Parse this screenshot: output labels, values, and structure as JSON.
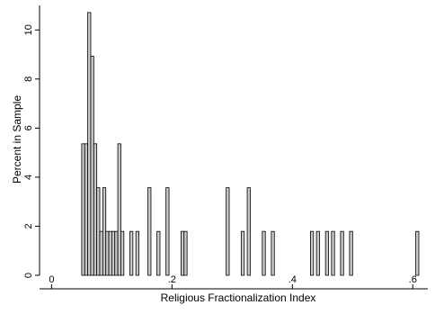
{
  "chart_data": {
    "type": "bar",
    "xlabel": "Religious Fractionalization Index",
    "ylabel": "Percent in Sample",
    "xlim": [
      -0.02,
      0.625
    ],
    "ylim": [
      0,
      11
    ],
    "x_ticks": [
      0,
      0.2,
      0.4,
      0.6
    ],
    "x_tick_labels": [
      "0",
      ".2",
      ".4",
      ".6"
    ],
    "y_ticks": [
      0,
      2,
      4,
      6,
      8,
      10
    ],
    "y_tick_labels": [
      "0",
      "2",
      "4",
      "6",
      "8",
      "10"
    ],
    "bin_width": 0.00508,
    "bar_fill": "#c8c8c8",
    "bar_stroke": "#000000",
    "bins": [
      {
        "x": 0.05,
        "value": 5.36
      },
      {
        "x": 0.055,
        "value": 5.36
      },
      {
        "x": 0.06,
        "value": 10.71
      },
      {
        "x": 0.065,
        "value": 8.93
      },
      {
        "x": 0.07,
        "value": 5.36
      },
      {
        "x": 0.075,
        "value": 3.57
      },
      {
        "x": 0.08,
        "value": 1.79
      },
      {
        "x": 0.085,
        "value": 3.57
      },
      {
        "x": 0.09,
        "value": 1.79
      },
      {
        "x": 0.095,
        "value": 1.79
      },
      {
        "x": 0.1,
        "value": 1.79
      },
      {
        "x": 0.105,
        "value": 1.79
      },
      {
        "x": 0.11,
        "value": 5.36
      },
      {
        "x": 0.115,
        "value": 1.79
      },
      {
        "x": 0.13,
        "value": 1.79
      },
      {
        "x": 0.14,
        "value": 1.79
      },
      {
        "x": 0.16,
        "value": 3.57
      },
      {
        "x": 0.175,
        "value": 1.79
      },
      {
        "x": 0.19,
        "value": 3.57
      },
      {
        "x": 0.215,
        "value": 1.79
      },
      {
        "x": 0.22,
        "value": 1.79
      },
      {
        "x": 0.29,
        "value": 3.57
      },
      {
        "x": 0.315,
        "value": 1.79
      },
      {
        "x": 0.325,
        "value": 3.57
      },
      {
        "x": 0.35,
        "value": 1.79
      },
      {
        "x": 0.365,
        "value": 1.79
      },
      {
        "x": 0.43,
        "value": 1.79
      },
      {
        "x": 0.44,
        "value": 1.79
      },
      {
        "x": 0.455,
        "value": 1.79
      },
      {
        "x": 0.465,
        "value": 1.79
      },
      {
        "x": 0.48,
        "value": 1.79
      },
      {
        "x": 0.495,
        "value": 1.79
      },
      {
        "x": 0.605,
        "value": 1.79
      }
    ]
  }
}
